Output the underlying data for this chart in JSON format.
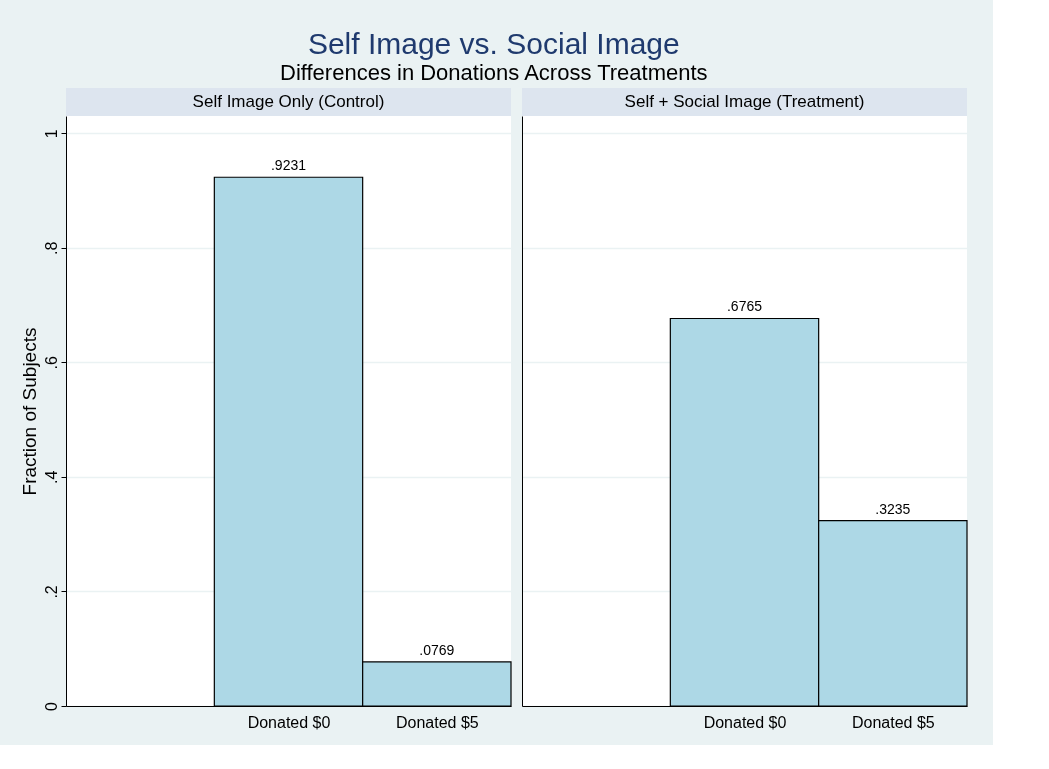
{
  "chart_data": [
    {
      "type": "bar",
      "title": "Self Image Only (Control)",
      "annotations": [
        "Self Image vs. Social Image",
        "Differences in Donations Across Treatments"
      ],
      "ylabel": "Fraction of Subjects",
      "categories": [
        "Donated $0",
        "Donated $5"
      ],
      "values": [
        0.9231,
        0.0769
      ],
      "value_labels": [
        ".9231",
        ".0769"
      ],
      "color": "#add8e6",
      "ylim": [
        0,
        1.03
      ],
      "yticks": [
        {
          "value": 0,
          "label": "0"
        },
        {
          "value": 0.2,
          "label": ".2"
        },
        {
          "value": 0.4,
          "label": ".4"
        },
        {
          "value": 0.6,
          "label": ".6"
        },
        {
          "value": 0.8,
          "label": ".8"
        },
        {
          "value": 1,
          "label": "1"
        }
      ],
      "grid": "y"
    },
    {
      "type": "bar",
      "title": "Self + Social Image (Treatment)",
      "categories": [
        "Donated $0",
        "Donated $5"
      ],
      "values": [
        0.6765,
        0.3235
      ],
      "value_labels": [
        ".6765",
        ".3235"
      ],
      "color": "#add8e6",
      "ylim": [
        0,
        1.03
      ],
      "yticks": [
        0,
        0.2,
        0.4,
        0.6,
        0.8,
        1
      ],
      "grid": "y",
      "tick_labels": "x"
    }
  ]
}
